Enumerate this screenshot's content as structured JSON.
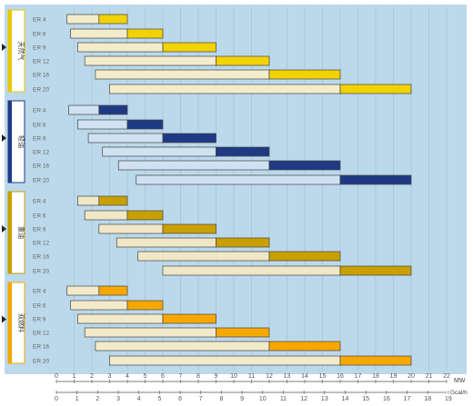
{
  "chart_data": {
    "type": "bar",
    "subtype": "floating-range",
    "groups": [
      {
        "name": "天然气",
        "colors": {
          "light": "#f3eccb",
          "accent": "#f2d200",
          "frame": "#e8c800"
        },
        "rows": [
          {
            "label": "ER 4",
            "low": 0.6,
            "mid": 2.4,
            "high": 4
          },
          {
            "label": "ER 6",
            "low": 0.8,
            "mid": 4,
            "high": 6
          },
          {
            "label": "ER 9",
            "low": 1.2,
            "mid": 6,
            "high": 9
          },
          {
            "label": "ER 12",
            "low": 1.6,
            "mid": 9,
            "high": 12
          },
          {
            "label": "ER 16",
            "low": 2.2,
            "mid": 12,
            "high": 16
          },
          {
            "label": "ER 20",
            "low": 3,
            "mid": 16,
            "high": 20
          }
        ]
      },
      {
        "name": "轻油",
        "colors": {
          "light": "#cfe2f1",
          "accent": "#1f3a85",
          "frame": "#1f3a85"
        },
        "rows": [
          {
            "label": "ER 4",
            "low": 0.7,
            "mid": 2.4,
            "high": 4
          },
          {
            "label": "ER 6",
            "low": 1.2,
            "mid": 4,
            "high": 6
          },
          {
            "label": "ER 9",
            "low": 1.8,
            "mid": 6,
            "high": 9
          },
          {
            "label": "ER 12",
            "low": 2.6,
            "mid": 9,
            "high": 12
          },
          {
            "label": "ER 16",
            "low": 3.5,
            "mid": 12,
            "high": 16
          },
          {
            "label": "ER 20",
            "low": 4.5,
            "mid": 16,
            "high": 20
          }
        ]
      },
      {
        "name": "重油",
        "colors": {
          "light": "#f0e7c6",
          "accent": "#c9a000",
          "frame": "#c9a000"
        },
        "rows": [
          {
            "label": "ER 4",
            "low": 1.2,
            "mid": 2.4,
            "high": 4
          },
          {
            "label": "ER 6",
            "low": 1.6,
            "mid": 4,
            "high": 6
          },
          {
            "label": "ER 9",
            "low": 2.4,
            "mid": 6,
            "high": 9
          },
          {
            "label": "ER 12",
            "low": 3.4,
            "mid": 9,
            "high": 12
          },
          {
            "label": "ER 16",
            "low": 4.6,
            "mid": 12,
            "high": 16
          },
          {
            "label": "ER 20",
            "low": 6,
            "mid": 16,
            "high": 20
          }
        ]
      },
      {
        "name": "双燃料",
        "colors": {
          "light": "#f3eacb",
          "accent": "#f7a800",
          "frame": "#f2a800"
        },
        "rows": [
          {
            "label": "ER 4",
            "low": 0.6,
            "mid": 2.4,
            "high": 4
          },
          {
            "label": "ER 6",
            "low": 0.8,
            "mid": 4,
            "high": 6
          },
          {
            "label": "ER 9",
            "low": 1.2,
            "mid": 6,
            "high": 9
          },
          {
            "label": "ER 12",
            "low": 1.6,
            "mid": 9,
            "high": 12
          },
          {
            "label": "ER 16",
            "low": 2.2,
            "mid": 12,
            "high": 16
          },
          {
            "label": "ER 20",
            "low": 3,
            "mid": 16,
            "high": 20
          }
        ]
      }
    ],
    "x_axis_mw": {
      "unit": "MW",
      "range": [
        0,
        22
      ],
      "ticks": [
        0,
        1,
        2,
        3,
        4,
        5,
        6,
        7,
        8,
        9,
        10,
        11,
        12,
        13,
        14,
        15,
        16,
        17,
        18,
        19,
        20,
        21,
        22
      ]
    },
    "x_axis_gcal": {
      "unit": "Gcal/h",
      "range": [
        0,
        19
      ],
      "ticks": [
        0,
        1,
        2,
        3,
        4,
        5,
        6,
        7,
        8,
        9,
        10,
        11,
        12,
        13,
        14,
        15,
        16,
        17,
        18,
        19
      ]
    },
    "grid": true,
    "legend": "none"
  }
}
